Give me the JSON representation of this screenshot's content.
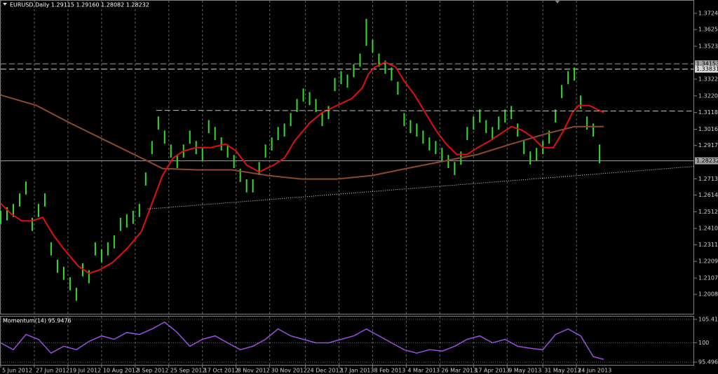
{
  "chart_data": [
    {
      "type": "ohlc",
      "title": "EURUSD,Daily  1.29115 1.29160 1.28082 1.28232",
      "color": "#33dd33",
      "x": [
        0,
        3,
        6,
        9,
        12,
        15,
        18,
        21,
        24,
        27,
        30,
        33,
        36,
        39,
        42,
        45,
        48,
        51,
        54,
        57,
        60,
        63,
        66,
        69,
        72,
        75,
        78,
        81,
        84,
        87,
        90,
        93,
        96,
        99,
        102,
        105,
        108,
        111,
        114,
        117,
        120,
        123,
        126,
        129,
        132,
        135,
        138,
        141,
        144,
        147,
        150,
        153,
        156,
        159,
        162,
        165,
        168,
        171,
        174,
        177,
        180,
        183,
        186,
        189,
        192,
        195,
        198,
        201,
        204,
        207,
        210,
        213,
        216,
        219,
        222,
        225,
        228,
        231,
        234,
        237,
        240,
        243,
        246,
        249,
        252,
        255,
        258,
        261,
        264,
        267,
        270,
        273,
        276,
        279,
        282,
        285
      ],
      "high": [
        1.2518,
        1.2539,
        1.256,
        1.2624,
        1.2697,
        1.2475,
        1.256,
        1.2624,
        1.2325,
        1.2219,
        1.2176,
        1.2112,
        1.2048,
        1.2197,
        1.2155,
        1.2325,
        1.2283,
        1.2325,
        1.2368,
        1.2475,
        1.2496,
        1.2518,
        1.256,
        1.2752,
        1.2944,
        1.3094,
        1.3008,
        1.2923,
        1.2859,
        1.2923,
        1.3008,
        1.2944,
        1.2902,
        1.3072,
        1.303,
        1.2966,
        1.2923,
        1.2859,
        1.2774,
        1.271,
        1.271,
        1.2816,
        1.2923,
        1.2966,
        1.303,
        1.3051,
        1.3115,
        1.3201,
        1.3265,
        1.3243,
        1.3201,
        1.3115,
        1.3158,
        1.3329,
        1.3371,
        1.335,
        1.3414,
        1.3478,
        1.369,
        1.3563,
        1.3478,
        1.3435,
        1.3393,
        1.3307,
        1.3115,
        1.3072,
        1.3051,
        1.3008,
        1.2966,
        1.2944,
        1.2902,
        1.2859,
        1.2816,
        1.288,
        1.303,
        1.3094,
        1.3137,
        1.3072,
        1.303,
        1.3094,
        1.3137,
        1.3158,
        1.3051,
        1.2944,
        1.288,
        1.2902,
        1.2944,
        1.3008,
        1.3137,
        1.3286,
        1.3371,
        1.3393,
        1.3222,
        1.3094,
        1.3051,
        1.2923
      ],
      "low": [
        1.2438,
        1.2459,
        1.248,
        1.2544,
        1.2617,
        1.2395,
        1.248,
        1.2544,
        1.2245,
        1.2139,
        1.2096,
        1.2032,
        1.1968,
        1.2117,
        1.2075,
        1.2245,
        1.2203,
        1.2245,
        1.2288,
        1.2395,
        1.2416,
        1.2438,
        1.248,
        1.2672,
        1.2864,
        1.3014,
        1.2928,
        1.2843,
        1.2779,
        1.2843,
        1.2928,
        1.2864,
        1.2822,
        1.2992,
        1.295,
        1.2886,
        1.2843,
        1.2779,
        1.2694,
        1.263,
        1.263,
        1.2736,
        1.2843,
        1.2886,
        1.295,
        1.2971,
        1.3035,
        1.3121,
        1.3185,
        1.3163,
        1.3121,
        1.3035,
        1.3078,
        1.3249,
        1.3291,
        1.327,
        1.3334,
        1.3398,
        1.3526,
        1.3483,
        1.3398,
        1.3355,
        1.3313,
        1.3227,
        1.3035,
        1.2992,
        1.2971,
        1.2928,
        1.2886,
        1.2864,
        1.2822,
        1.2779,
        1.2736,
        1.28,
        1.295,
        1.3014,
        1.3057,
        1.2992,
        1.295,
        1.3014,
        1.3057,
        1.3078,
        1.2971,
        1.2864,
        1.28,
        1.2822,
        1.2864,
        1.2928,
        1.3057,
        1.3206,
        1.3291,
        1.3313,
        1.3142,
        1.3014,
        1.2971,
        1.2808
      ],
      "lines": [
        {
          "color": "#8b4a2b",
          "style": "solid",
          "x": [
            0,
            17,
            33,
            50,
            67,
            77,
            93,
            110,
            127,
            143,
            160,
            177,
            193,
            210,
            227,
            243,
            260,
            273,
            287
          ],
          "values": [
            1.3225,
            1.3161,
            1.3054,
            1.2947,
            1.284,
            1.2776,
            1.2768,
            1.2768,
            1.2734,
            1.2712,
            1.2712,
            1.2734,
            1.2776,
            1.2819,
            1.2862,
            1.2926,
            1.299,
            1.3032,
            1.3032
          ]
        },
        {
          "color": "#e01010",
          "style": "solid",
          "x": [
            0,
            5,
            10,
            15,
            20,
            25,
            30,
            37,
            42,
            47,
            53,
            60,
            67,
            72,
            77,
            82,
            87,
            93,
            100,
            107,
            112,
            117,
            123,
            130,
            135,
            140,
            147,
            153,
            160,
            167,
            172,
            175,
            178,
            183,
            188,
            192,
            197,
            202,
            207,
            212,
            217,
            222,
            227,
            233,
            238,
            243,
            248,
            253,
            258,
            263,
            268,
            272,
            275,
            280,
            287
          ],
          "values": [
            1.2563,
            1.2499,
            1.2456,
            1.2456,
            1.2478,
            1.2371,
            1.2285,
            1.2179,
            1.2136,
            1.2157,
            1.22,
            1.2285,
            1.2392,
            1.2563,
            1.2734,
            1.284,
            1.2883,
            1.2904,
            1.2904,
            1.2926,
            1.2883,
            1.2798,
            1.2755,
            1.2798,
            1.284,
            1.2947,
            1.3054,
            1.3118,
            1.3161,
            1.3203,
            1.3267,
            1.3353,
            1.3395,
            1.3425,
            1.3395,
            1.331,
            1.3225,
            1.3118,
            1.3011,
            1.2926,
            1.2862,
            1.2862,
            1.2904,
            1.2947,
            1.299,
            1.3032,
            1.3011,
            1.2968,
            1.2904,
            1.2904,
            1.3011,
            1.3118,
            1.3161,
            1.3161,
            1.3118
          ]
        },
        {
          "color": "#c0c0c0",
          "style": "dashed",
          "x": [
            74,
            330
          ],
          "values": [
            1.3131,
            1.3127
          ]
        },
        {
          "color": "#e0e0e0",
          "style": "dotted",
          "x": [
            70,
            330
          ],
          "values": [
            1.2529,
            1.2789
          ]
        }
      ],
      "hlines": [
        {
          "value": 1.34153,
          "label": "1.34153",
          "style": "dashed",
          "color": "#a0a0a0"
        },
        {
          "value": 1.33831,
          "label": "1.33831",
          "style": "dashed",
          "color": "#d8d8d8"
        },
        {
          "value": 1.28232,
          "label": "1.28232",
          "style": "solid",
          "color": "#a0a0a0"
        }
      ],
      "xlim": [
        0,
        330
      ],
      "ylim": [
        1.1889,
        1.3801
      ],
      "yticks": [
        {
          "value": 1.3724,
          "label": "1.37240"
        },
        {
          "value": 1.3625,
          "label": "1.36250"
        },
        {
          "value": 1.3523,
          "label": "1.35230"
        },
        {
          "value": 1.3322,
          "label": "1.33220"
        },
        {
          "value": 1.322,
          "label": "1.32200"
        },
        {
          "value": 1.3118,
          "label": "1.31180"
        },
        {
          "value": 1.3016,
          "label": "1.30160"
        },
        {
          "value": 1.2917,
          "label": "1.29170"
        },
        {
          "value": 1.2713,
          "label": "1.27130"
        },
        {
          "value": 1.2614,
          "label": "1.26140"
        },
        {
          "value": 1.2512,
          "label": "1.25120"
        },
        {
          "value": 1.241,
          "label": "1.24100"
        },
        {
          "value": 1.2311,
          "label": "1.23110"
        },
        {
          "value": 1.2209,
          "label": "1.22090"
        },
        {
          "value": 1.2107,
          "label": "1.21070"
        },
        {
          "value": 1.2008,
          "label": "1.20080"
        }
      ],
      "xticks": [
        {
          "value": 0,
          "label": "5 Jun 2012"
        },
        {
          "value": 16,
          "label": "27 Jun 2012"
        },
        {
          "value": 32,
          "label": "19 Jul 2012"
        },
        {
          "value": 48,
          "label": "10 Aug 2012"
        },
        {
          "value": 64,
          "label": "3 Sep 2012"
        },
        {
          "value": 80,
          "label": "25 Sep 2012"
        },
        {
          "value": 96,
          "label": "17 Oct 2012"
        },
        {
          "value": 112,
          "label": "8 Nov 2012"
        },
        {
          "value": 128,
          "label": "30 Nov 2012"
        },
        {
          "value": 145,
          "label": "24 Dec 2012"
        },
        {
          "value": 161,
          "label": "17 Jan 2013"
        },
        {
          "value": 177,
          "label": "8 Feb 2013"
        },
        {
          "value": 193,
          "label": "4 Mar 2013"
        },
        {
          "value": 209,
          "label": "26 Mar 2013"
        },
        {
          "value": 225,
          "label": "17 Apr 2013"
        },
        {
          "value": 241,
          "label": "9 May 2013"
        },
        {
          "value": 258,
          "label": "31 May 2013"
        },
        {
          "value": 274,
          "label": "24 Jun 2013"
        }
      ],
      "grid": true
    },
    {
      "type": "line",
      "title": "Momentum(14) 95.9476",
      "color": "#9a4fe0",
      "x": [
        0,
        6,
        12,
        18,
        24,
        30,
        36,
        42,
        48,
        54,
        60,
        66,
        72,
        78,
        84,
        90,
        96,
        102,
        108,
        114,
        120,
        126,
        132,
        138,
        144,
        150,
        156,
        162,
        168,
        174,
        180,
        186,
        192,
        198,
        204,
        210,
        216,
        222,
        228,
        234,
        240,
        246,
        252,
        258,
        264,
        270,
        276,
        282,
        287
      ],
      "values": [
        99.98,
        98.38,
        101.9,
        100.78,
        97.58,
        99.18,
        98.38,
        100.3,
        101.58,
        100.78,
        102.38,
        101.9,
        103.18,
        104.78,
        102.38,
        99.18,
        100.78,
        101.58,
        99.98,
        98.38,
        99.18,
        100.78,
        103.18,
        101.58,
        100.78,
        99.98,
        99.98,
        100.78,
        101.58,
        103.18,
        101.58,
        99.98,
        98.38,
        97.58,
        98.38,
        98.06,
        99.18,
        100.78,
        101.58,
        99.98,
        100.78,
        99.18,
        98.7,
        98.38,
        101.9,
        103.18,
        101.58,
        96.78,
        96.14
      ],
      "xlim": [
        0,
        330
      ],
      "ylim": [
        94.86,
        106.06
      ],
      "yticks": [
        105.4174,
        100,
        95.4966
      ]
    }
  ]
}
